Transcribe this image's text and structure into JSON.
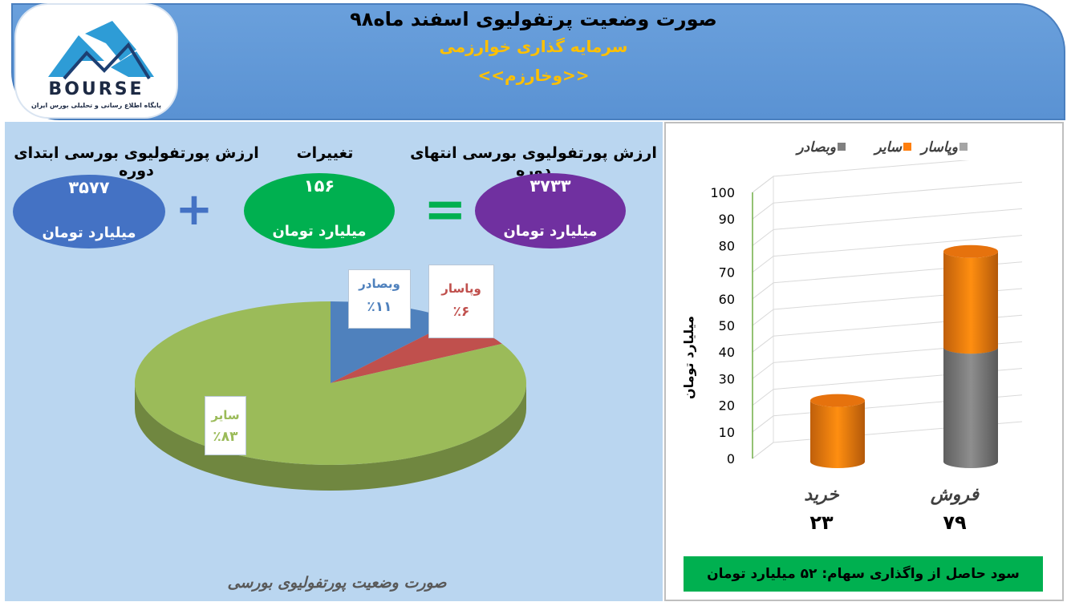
{
  "header": {
    "title": "صورت وضعیت پرتفولیوی اسفند ماه۹۸",
    "subtitle": "سرمایه گذاری خوارزمی",
    "ticker": "<<وخارزم>>"
  },
  "logo": {
    "brand": "BOURSE",
    "tagline": "پایگاه اطلاع رسانی و تحلیلی بورس ایران"
  },
  "equation": {
    "start": {
      "label": "ارزش پورتفولیوی بورسی ابتدای دوره",
      "value": "۳۵۷۷",
      "unit": "میلیارد تومان"
    },
    "change": {
      "label": "تغییرات",
      "value": "۱۵۶",
      "unit": "میلیارد تومان"
    },
    "end": {
      "label": "ارزش پورتفولیوی بورسی انتهای دوره",
      "value": "۳۷۳۳",
      "unit": "میلیارد تومان"
    },
    "plus": "+",
    "equals": "="
  },
  "pie_footer": "صورت وضعیت پورتفولیوی بورسی",
  "profit_text": "سود حاصل از واگذاری سهام: ۵۲ میلیارد تومان",
  "colors": {
    "blue_ellipse": "#4472c4",
    "green_ellipse": "#00b050",
    "purple_ellipse": "#7030a0",
    "pie_green": "#9bbb59",
    "pie_blue": "#4f81bd",
    "pie_red": "#c0504d",
    "bar_gray": "#7f7f7f",
    "bar_orange": "#ff7f0e"
  },
  "chart_data": [
    {
      "type": "pie",
      "categories": [
        "وبصادر",
        "وپاسار",
        "سایر"
      ],
      "values": [
        11,
        6,
        83
      ],
      "data_labels": [
        "٪۱۱",
        "٪۶",
        "٪۸۳"
      ],
      "colors": [
        "#4f81bd",
        "#c0504d",
        "#9bbb59"
      ]
    },
    {
      "type": "bar",
      "stacked": true,
      "categories": [
        "فروش",
        "خرید"
      ],
      "category_totals": [
        "۷۹",
        "۲۳"
      ],
      "series": [
        {
          "name": "وپاسار",
          "values": [
            43,
            0
          ],
          "color": "#7f7f7f"
        },
        {
          "name": "سایر",
          "values": [
            36,
            23
          ],
          "color": "#ff7f0e"
        },
        {
          "name": "وبصادر",
          "values": [
            0,
            0
          ],
          "color": "#808080"
        }
      ],
      "yticks": [
        "0",
        "10",
        "20",
        "30",
        "40",
        "50",
        "60",
        "70",
        "80",
        "90",
        "100"
      ],
      "ylabel": "میلیارد تومان",
      "ylim": [
        0,
        100
      ],
      "grid": true,
      "legend": "top"
    }
  ]
}
